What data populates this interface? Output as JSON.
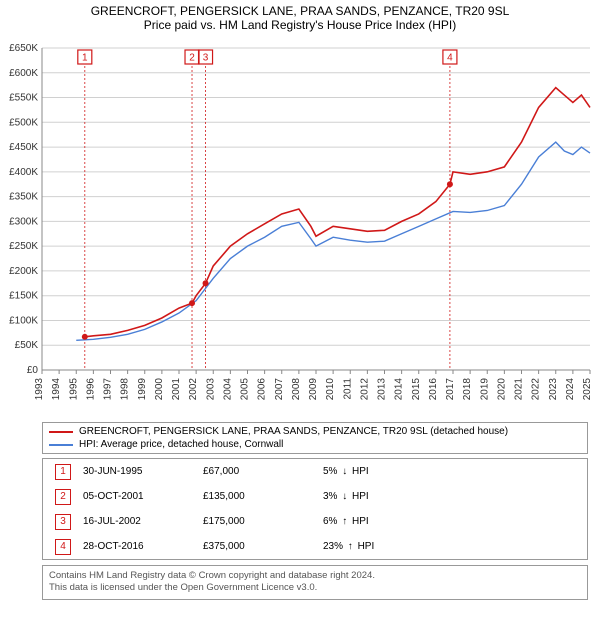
{
  "title_main": "GREENCROFT, PENGERSICK LANE, PRAA SANDS, PENZANCE, TR20 9SL",
  "title_sub": "Price paid vs. HM Land Registry's House Price Index (HPI)",
  "chart": {
    "type": "line",
    "background_color": "#ffffff",
    "grid_color": "#d0d0d0",
    "axis_color": "#888888",
    "x_years": [
      1993,
      1994,
      1995,
      1996,
      1997,
      1998,
      1999,
      2000,
      2001,
      2002,
      2003,
      2004,
      2005,
      2006,
      2007,
      2008,
      2009,
      2010,
      2011,
      2012,
      2013,
      2014,
      2015,
      2016,
      2017,
      2018,
      2019,
      2020,
      2021,
      2022,
      2023,
      2024,
      2025
    ],
    "x_rotate_deg": -90,
    "x_fontsize": 10,
    "ylim": [
      0,
      650000
    ],
    "ytick_step": 50000,
    "y_labels": [
      "£0",
      "£50K",
      "£100K",
      "£150K",
      "£200K",
      "£250K",
      "£300K",
      "£350K",
      "£400K",
      "£450K",
      "£500K",
      "£550K",
      "£600K",
      "£650K"
    ],
    "y_fontsize": 10,
    "series": {
      "subject": {
        "label": "GREENCROFT, PENGERSICK LANE, PRAA SANDS, PENZANCE, TR20 9SL (detached house)",
        "color": "#d01818",
        "line_width": 1.6,
        "points": [
          [
            1995.5,
            67000
          ],
          [
            1996,
            69000
          ],
          [
            1997,
            72000
          ],
          [
            1998,
            80000
          ],
          [
            1999,
            90000
          ],
          [
            2000,
            105000
          ],
          [
            2001,
            125000
          ],
          [
            2001.76,
            135000
          ],
          [
            2002,
            150000
          ],
          [
            2002.55,
            175000
          ],
          [
            2003,
            210000
          ],
          [
            2004,
            250000
          ],
          [
            2005,
            275000
          ],
          [
            2006,
            295000
          ],
          [
            2007,
            315000
          ],
          [
            2008,
            325000
          ],
          [
            2008.7,
            290000
          ],
          [
            2009,
            270000
          ],
          [
            2010,
            290000
          ],
          [
            2011,
            285000
          ],
          [
            2012,
            280000
          ],
          [
            2013,
            282000
          ],
          [
            2014,
            300000
          ],
          [
            2015,
            315000
          ],
          [
            2016,
            340000
          ],
          [
            2016.82,
            375000
          ],
          [
            2017,
            400000
          ],
          [
            2018,
            395000
          ],
          [
            2019,
            400000
          ],
          [
            2020,
            410000
          ],
          [
            2021,
            460000
          ],
          [
            2022,
            530000
          ],
          [
            2023,
            570000
          ],
          [
            2023.5,
            555000
          ],
          [
            2024,
            540000
          ],
          [
            2024.5,
            555000
          ],
          [
            2025,
            530000
          ]
        ]
      },
      "hpi": {
        "label": "HPI: Average price, detached house, Cornwall",
        "color": "#4a7fd6",
        "line_width": 1.4,
        "points": [
          [
            1995,
            60000
          ],
          [
            1996,
            62000
          ],
          [
            1997,
            66000
          ],
          [
            1998,
            72000
          ],
          [
            1999,
            82000
          ],
          [
            2000,
            97000
          ],
          [
            2001,
            115000
          ],
          [
            2002,
            140000
          ],
          [
            2003,
            185000
          ],
          [
            2004,
            225000
          ],
          [
            2005,
            250000
          ],
          [
            2006,
            268000
          ],
          [
            2007,
            290000
          ],
          [
            2008,
            298000
          ],
          [
            2008.7,
            265000
          ],
          [
            2009,
            250000
          ],
          [
            2010,
            268000
          ],
          [
            2011,
            262000
          ],
          [
            2012,
            258000
          ],
          [
            2013,
            260000
          ],
          [
            2014,
            275000
          ],
          [
            2015,
            290000
          ],
          [
            2016,
            305000
          ],
          [
            2017,
            320000
          ],
          [
            2018,
            318000
          ],
          [
            2019,
            322000
          ],
          [
            2020,
            332000
          ],
          [
            2021,
            375000
          ],
          [
            2022,
            430000
          ],
          [
            2023,
            460000
          ],
          [
            2023.5,
            442000
          ],
          [
            2024,
            435000
          ],
          [
            2024.5,
            450000
          ],
          [
            2025,
            438000
          ]
        ]
      }
    },
    "sales": [
      {
        "n": "1",
        "year": 1995.5,
        "price": 67000
      },
      {
        "n": "2",
        "year": 2001.76,
        "price": 135000
      },
      {
        "n": "3",
        "year": 2002.55,
        "price": 175000
      },
      {
        "n": "4",
        "year": 2016.82,
        "price": 375000
      }
    ],
    "sale_dot_color": "#d01818",
    "sale_dot_radius": 3
  },
  "legend": {
    "border_color": "#999999",
    "fontsize": 10
  },
  "table_rows": [
    {
      "n": "1",
      "date": "30-JUN-1995",
      "price": "£67,000",
      "delta": "5%",
      "arrow": "↓",
      "against": "HPI"
    },
    {
      "n": "2",
      "date": "05-OCT-2001",
      "price": "£135,000",
      "delta": "3%",
      "arrow": "↓",
      "against": "HPI"
    },
    {
      "n": "3",
      "date": "16-JUL-2002",
      "price": "£175,000",
      "delta": "6%",
      "arrow": "↑",
      "against": "HPI"
    },
    {
      "n": "4",
      "date": "28-OCT-2016",
      "price": "£375,000",
      "delta": "23%",
      "arrow": "↑",
      "against": "HPI"
    }
  ],
  "footer_line1": "Contains HM Land Registry data © Crown copyright and database right 2024.",
  "footer_line2": "This data is licensed under the Open Government Licence v3.0."
}
